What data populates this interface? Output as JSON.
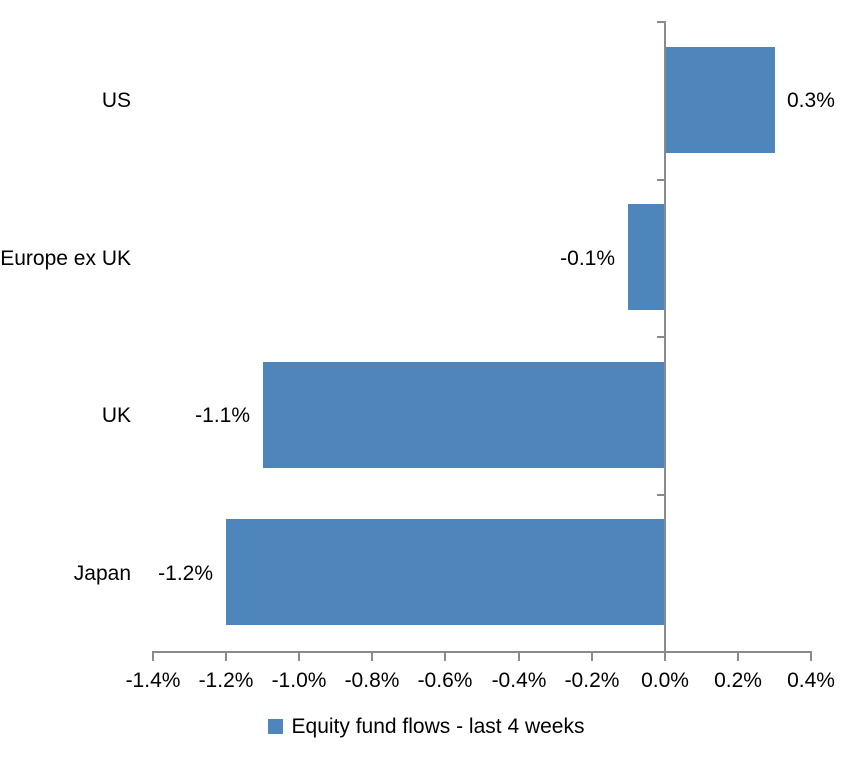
{
  "chart_data": {
    "type": "bar",
    "orientation": "horizontal",
    "title": "",
    "xlabel": "",
    "ylabel": "",
    "categories": [
      "US",
      "Europe ex UK",
      "UK",
      "Japan"
    ],
    "values": [
      0.3,
      -0.1,
      -1.1,
      -1.2
    ],
    "value_labels": [
      "0.3%",
      "-0.1%",
      "-1.1%",
      "-1.2%"
    ],
    "series_name": "Equity fund flows - last 4 weeks",
    "xlim": [
      -1.4,
      0.4
    ],
    "x_tick_step": 0.2,
    "x_ticks": [
      -1.4,
      -1.2,
      -1.0,
      -0.8,
      -0.6,
      -0.4,
      -0.2,
      0.0,
      0.2,
      0.4
    ],
    "x_tick_labels": [
      "-1.4%",
      "-1.2%",
      "-1.0%",
      "-0.8%",
      "-0.6%",
      "-0.4%",
      "-0.2%",
      "0.0%",
      "0.2%",
      "0.4%"
    ],
    "grid": false,
    "legend_position": "bottom",
    "colors": {
      "bar_fill": "#4E86BC",
      "axis_line": "#8A8A8A",
      "text": "#000000",
      "background": "#FFFFFF"
    }
  }
}
